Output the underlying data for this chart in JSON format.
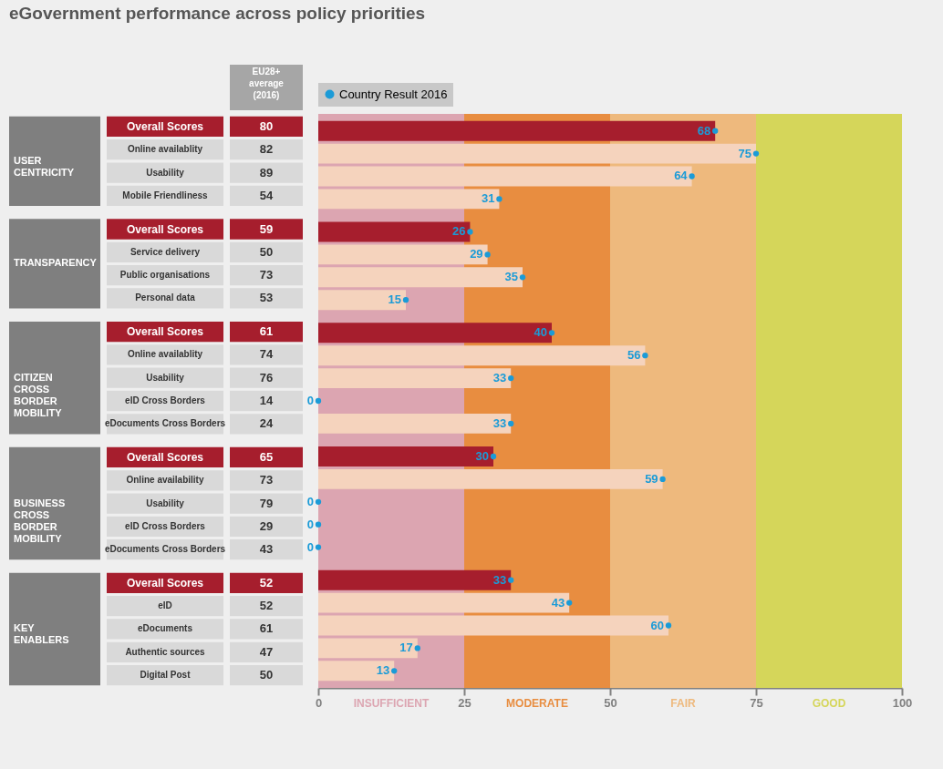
{
  "chart_data": [
    {
      "type": "bar",
      "orientation": "horizontal",
      "title": "eGovernment performance across policy priorities",
      "categories": [
        "Overall Scores",
        "Online availablity",
        "Usability",
        "Mobile Friendliness",
        "Overall Scores",
        "Service delivery",
        "Public organisations",
        "Personal data",
        "Overall Scores",
        "Online availablity",
        "Usability",
        "eID Cross Borders",
        "eDocuments Cross Borders",
        "Overall Scores",
        "Online availability",
        "Usability",
        "eID Cross Borders",
        "eDocuments Cross Borders",
        "Overall Scores",
        "eID",
        "eDocuments",
        "Authentic sources",
        "Digital Post"
      ],
      "series": [
        {
          "type": "bar",
          "colors": [
            "#a61e2d",
            "#f5d3bd",
            "#f5d3bd",
            "#f5d3bd",
            "#a61e2d",
            "#f5d3bd",
            "#f5d3bd",
            "#f5d3bd",
            "#a61e2d",
            "#f5d3bd",
            "#f5d3bd",
            "#f5d3bd",
            "#f5d3bd",
            "#a61e2d",
            "#f5d3bd",
            "#f5d3bd",
            "#f5d3bd",
            "#f5d3bd",
            "#a61e2d",
            "#f5d3bd",
            "#f5d3bd",
            "#f5d3bd",
            "#f5d3bd"
          ],
          "values": [
            68,
            75,
            64,
            31,
            26,
            29,
            35,
            15,
            40,
            56,
            33,
            0,
            33,
            30,
            59,
            0,
            0,
            0,
            33,
            43,
            60,
            17,
            13
          ]
        },
        {
          "type": "scatter",
          "name": "Country Result 2016",
          "color": "#1b9bd7",
          "values": [
            68,
            75,
            64,
            31,
            26,
            29,
            35,
            15,
            40,
            56,
            33,
            0,
            33,
            30,
            59,
            0,
            0,
            0,
            33,
            43,
            60,
            17,
            13
          ],
          "value_labels": [
            "68",
            "75",
            "64",
            "31",
            "26",
            "29",
            "35",
            "15",
            "40",
            "56",
            "33",
            "0",
            "33",
            "30",
            "59",
            "0",
            "0",
            "0",
            "33",
            "43",
            "60",
            "17",
            "13"
          ]
        }
      ],
      "xlim": [
        0,
        100
      ],
      "xticks": [
        0,
        25,
        50,
        75,
        100
      ],
      "bands": [
        {
          "axis": "x",
          "from": 0,
          "to": 25,
          "label": "INSUFFICIENT",
          "color": "#dca5b1"
        },
        {
          "axis": "x",
          "from": 25,
          "to": 50,
          "label": "MODERATE",
          "color": "#e88d40"
        },
        {
          "axis": "x",
          "from": 50,
          "to": 75,
          "label": "FAIR",
          "color": "#eeb97d"
        },
        {
          "axis": "x",
          "from": 75,
          "to": 100,
          "label": "GOOD",
          "color": "#d5d65a"
        }
      ],
      "annotations": [
        "USER CENTRICITY",
        "TRANSPARENCY",
        "CITIZEN CROSS BORDER MOBILITY",
        "BUSINESS CROSS BORDER MOBILITY",
        "KEY ENABLERS"
      ],
      "legend": "top left",
      "marker": "circle"
    },
    {
      "type": "other",
      "title": "EU28+ average (2016)",
      "data_labels": true,
      "values": [
        80,
        82,
        89,
        54,
        59,
        50,
        73,
        53,
        61,
        74,
        76,
        14,
        24,
        65,
        73,
        79,
        29,
        43,
        52,
        52,
        61,
        47,
        50
      ],
      "colors": [
        "#a61e2d",
        "#d9d9d9",
        "#d9d9d9",
        "#d9d9d9",
        "#a61e2d",
        "#d9d9d9",
        "#d9d9d9",
        "#d9d9d9",
        "#a61e2d",
        "#d9d9d9",
        "#d9d9d9",
        "#d9d9d9",
        "#d9d9d9",
        "#a61e2d",
        "#d9d9d9",
        "#d9d9d9",
        "#d9d9d9",
        "#d9d9d9",
        "#a61e2d",
        "#d9d9d9",
        "#d9d9d9",
        "#d9d9d9",
        "#d9d9d9"
      ]
    }
  ]
}
